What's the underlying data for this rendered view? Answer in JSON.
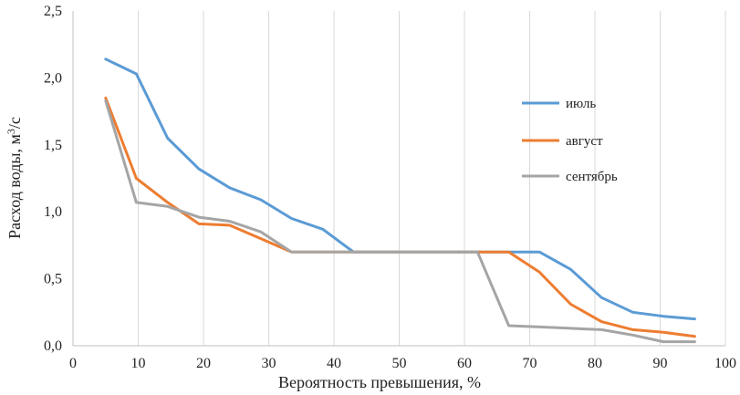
{
  "chart_data": {
    "type": "line",
    "title": "",
    "xlabel": "Вероятность превышения, %",
    "ylabel_main": "Расход воды, м",
    "ylabel_sup": "3",
    "ylabel_tail": "/с",
    "xlim": [
      0,
      100
    ],
    "ylim": [
      0,
      2.5
    ],
    "x_ticks": [
      0,
      10,
      20,
      30,
      40,
      50,
      60,
      70,
      80,
      90,
      100
    ],
    "x_tick_labels": [
      "0",
      "10",
      "20",
      "30",
      "40",
      "50",
      "60",
      "70",
      "80",
      "90",
      "100"
    ],
    "y_ticks": [
      0,
      0.5,
      1.0,
      1.5,
      2.0,
      2.5
    ],
    "y_tick_labels": [
      "0,0",
      "0,5",
      "1,0",
      "1,5",
      "2,0",
      "2,5"
    ],
    "grid": "vertical",
    "legend_position": "right",
    "series": [
      {
        "name": "июль",
        "color": "#5b9bd5",
        "x": [
          5,
          9.7,
          14.5,
          19.3,
          24,
          28.8,
          33.5,
          38.3,
          43,
          47.8,
          52.5,
          57.3,
          62,
          66.8,
          71.5,
          76.3,
          81,
          85.8,
          90.5,
          95.3
        ],
        "y": [
          2.14,
          2.03,
          1.55,
          1.32,
          1.18,
          1.09,
          0.95,
          0.87,
          0.7,
          0.7,
          0.7,
          0.7,
          0.7,
          0.7,
          0.7,
          0.57,
          0.36,
          0.25,
          0.22,
          0.2
        ]
      },
      {
        "name": "август",
        "color": "#ed7d31",
        "x": [
          5,
          9.7,
          14.5,
          19.3,
          24,
          28.8,
          33.5,
          38.3,
          43,
          47.8,
          52.5,
          57.3,
          62,
          66.8,
          71.5,
          76.3,
          81,
          85.8,
          90.5,
          95.3
        ],
        "y": [
          1.85,
          1.25,
          1.07,
          0.91,
          0.9,
          0.8,
          0.7,
          0.7,
          0.7,
          0.7,
          0.7,
          0.7,
          0.7,
          0.7,
          0.55,
          0.31,
          0.18,
          0.12,
          0.1,
          0.07
        ]
      },
      {
        "name": "сентябрь",
        "color": "#a5a5a5",
        "x": [
          5,
          9.7,
          14.5,
          19.3,
          24,
          28.8,
          33.5,
          38.3,
          43,
          47.8,
          52.5,
          57.3,
          62,
          66.8,
          71.5,
          76.3,
          81,
          85.8,
          90.5,
          95.3
        ],
        "y": [
          1.83,
          1.07,
          1.04,
          0.96,
          0.93,
          0.85,
          0.7,
          0.7,
          0.7,
          0.7,
          0.7,
          0.7,
          0.7,
          0.15,
          0.14,
          0.13,
          0.12,
          0.08,
          0.03,
          0.03
        ]
      }
    ]
  }
}
